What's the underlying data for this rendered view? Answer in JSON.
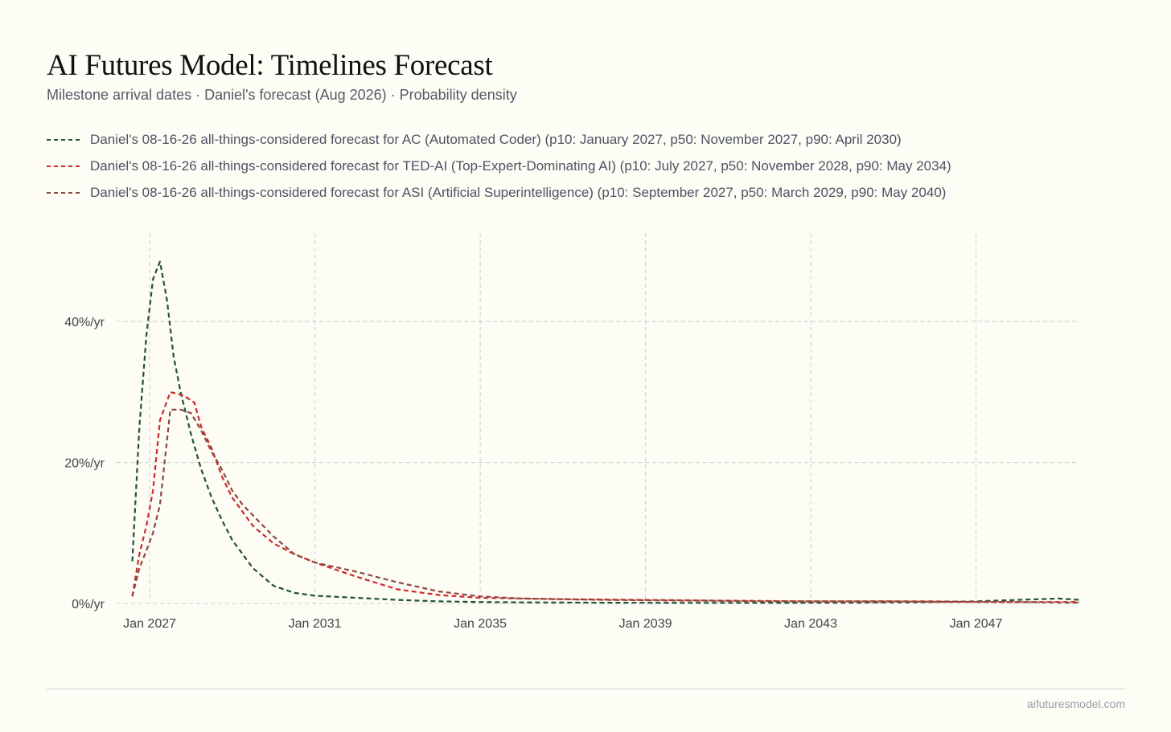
{
  "page": {
    "title": "AI Futures Model: Timelines Forecast",
    "subtitle": "Milestone arrival dates · Daniel's forecast (Aug 2026) · Probability density",
    "footer": "aifuturesmodel.com"
  },
  "colors": {
    "background": "#fdfcf5",
    "grid": "#cccccc"
  },
  "chart_data": {
    "type": "line",
    "title": "AI Futures Model: Timelines Forecast",
    "subtitle": "Milestone arrival dates · Daniel's forecast (Aug 2026) · Probability density",
    "xlabel": "",
    "ylabel": "",
    "x_unit": "year",
    "xlim": [
      2026.2,
      2049.5
    ],
    "ylim": [
      0,
      0.48
    ],
    "x_ticks": [
      {
        "value": 2027,
        "label": "Jan 2027"
      },
      {
        "value": 2031,
        "label": "Jan 2031"
      },
      {
        "value": 2035,
        "label": "Jan 2035"
      },
      {
        "value": 2039,
        "label": "Jan 2039"
      },
      {
        "value": 2043,
        "label": "Jan 2043"
      },
      {
        "value": 2047,
        "label": "Jan 2047"
      }
    ],
    "y_ticks": [
      {
        "value": 0,
        "label": "0%/yr"
      },
      {
        "value": 0.2,
        "label": "20%/yr"
      },
      {
        "value": 0.4,
        "label": "40%/yr"
      }
    ],
    "grid": true,
    "legend_position": "top-left",
    "line_style": "dashed",
    "series": [
      {
        "name": "Daniel's 08-16-26 all-things-considered forecast for AC (Automated Coder) (p10: January 2027, p50: November 2027, p90: April 2030)",
        "color": "#1f5135",
        "points": [
          [
            2026.58,
            0.06
          ],
          [
            2026.75,
            0.25
          ],
          [
            2026.92,
            0.38
          ],
          [
            2027.08,
            0.46
          ],
          [
            2027.25,
            0.485
          ],
          [
            2027.42,
            0.43
          ],
          [
            2027.58,
            0.35
          ],
          [
            2027.75,
            0.3
          ],
          [
            2028.0,
            0.24
          ],
          [
            2028.25,
            0.19
          ],
          [
            2028.5,
            0.15
          ],
          [
            2028.75,
            0.118
          ],
          [
            2029.0,
            0.09
          ],
          [
            2029.5,
            0.05
          ],
          [
            2030.0,
            0.025
          ],
          [
            2030.5,
            0.015
          ],
          [
            2031.0,
            0.011
          ],
          [
            2032.0,
            0.008
          ],
          [
            2033.0,
            0.005
          ],
          [
            2034.0,
            0.003
          ],
          [
            2035.0,
            0.002
          ],
          [
            2036.0,
            0.0015
          ],
          [
            2038.0,
            0.001
          ],
          [
            2040.0,
            0.0008
          ],
          [
            2042.0,
            0.0008
          ],
          [
            2044.0,
            0.001
          ],
          [
            2046.0,
            0.002
          ],
          [
            2047.0,
            0.003
          ],
          [
            2048.0,
            0.005
          ],
          [
            2049.0,
            0.007
          ],
          [
            2049.5,
            0.005
          ]
        ]
      },
      {
        "name": "Daniel's 08-16-26 all-things-considered forecast for TED-AI (Top-Expert-Dominating AI) (p10: July 2027, p50: November 2028, p90: May 2034)",
        "color": "#cc2a2a",
        "points": [
          [
            2026.58,
            0.01
          ],
          [
            2026.75,
            0.07
          ],
          [
            2026.92,
            0.11
          ],
          [
            2027.08,
            0.16
          ],
          [
            2027.25,
            0.26
          ],
          [
            2027.5,
            0.3
          ],
          [
            2027.83,
            0.295
          ],
          [
            2028.08,
            0.285
          ],
          [
            2028.25,
            0.25
          ],
          [
            2028.5,
            0.22
          ],
          [
            2028.75,
            0.18
          ],
          [
            2029.0,
            0.15
          ],
          [
            2029.5,
            0.11
          ],
          [
            2030.0,
            0.085
          ],
          [
            2030.5,
            0.07
          ],
          [
            2031.0,
            0.058
          ],
          [
            2032.0,
            0.038
          ],
          [
            2033.0,
            0.02
          ],
          [
            2034.0,
            0.012
          ],
          [
            2035.0,
            0.008
          ],
          [
            2037.0,
            0.006
          ],
          [
            2039.0,
            0.005
          ],
          [
            2041.0,
            0.004
          ],
          [
            2043.0,
            0.003
          ],
          [
            2045.0,
            0.003
          ],
          [
            2047.0,
            0.002
          ],
          [
            2049.5,
            0.002
          ]
        ]
      },
      {
        "name": "Daniel's 08-16-26 all-things-considered forecast for ASI (Artificial Superintelligence) (p10: September 2027, p50: March 2029, p90: May 2040)",
        "color": "#8b4a3f",
        "points": [
          [
            2026.58,
            0.01
          ],
          [
            2026.75,
            0.05
          ],
          [
            2026.92,
            0.075
          ],
          [
            2027.08,
            0.1
          ],
          [
            2027.25,
            0.14
          ],
          [
            2027.5,
            0.275
          ],
          [
            2027.75,
            0.275
          ],
          [
            2028.0,
            0.27
          ],
          [
            2028.25,
            0.245
          ],
          [
            2028.5,
            0.215
          ],
          [
            2028.75,
            0.19
          ],
          [
            2029.0,
            0.16
          ],
          [
            2029.25,
            0.14
          ],
          [
            2029.5,
            0.125
          ],
          [
            2030.0,
            0.095
          ],
          [
            2030.5,
            0.07
          ],
          [
            2031.0,
            0.058
          ],
          [
            2032.0,
            0.045
          ],
          [
            2033.0,
            0.03
          ],
          [
            2034.0,
            0.017
          ],
          [
            2035.0,
            0.01
          ],
          [
            2036.0,
            0.007
          ],
          [
            2038.0,
            0.005
          ],
          [
            2040.0,
            0.004
          ],
          [
            2042.0,
            0.003
          ],
          [
            2044.0,
            0.003
          ],
          [
            2046.0,
            0.003
          ],
          [
            2048.0,
            0.002
          ],
          [
            2049.5,
            0.001
          ]
        ]
      }
    ]
  }
}
